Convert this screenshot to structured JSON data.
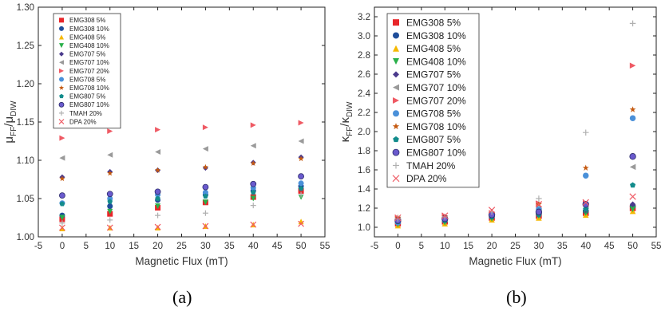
{
  "captions": [
    "(a)",
    "(b)"
  ],
  "chart_data": [
    {
      "type": "scatter",
      "panel": "(a)",
      "xlabel": "Magnetic Flux (mT)",
      "ylabel_main": "μ",
      "ylabel_sub1": "FF",
      "ylabel_mid": "/μ",
      "ylabel_sub2": "DIW",
      "xlim": [
        -5,
        55
      ],
      "ylim": [
        1.0,
        1.3
      ],
      "xticks": [
        -5,
        0,
        5,
        10,
        15,
        20,
        25,
        30,
        35,
        40,
        45,
        50,
        55
      ],
      "yticks": [
        1.0,
        1.05,
        1.1,
        1.15,
        1.2,
        1.25,
        1.3
      ],
      "ytick_labels": [
        "1.00",
        "1.05",
        "1.10",
        "1.15",
        "1.20",
        "1.25",
        "1.30"
      ],
      "legend_position": "top-left",
      "x": [
        0,
        10,
        20,
        30,
        40,
        50
      ],
      "series": [
        {
          "name": "EMG308 5%",
          "marker": "square",
          "color": "#e8262a",
          "values": [
            1.023,
            1.03,
            1.038,
            1.045,
            1.052,
            1.06
          ]
        },
        {
          "name": "EMG308 10%",
          "marker": "circle",
          "color": "#1f4e9a",
          "values": [
            1.028,
            1.04,
            1.048,
            1.055,
            1.06,
            1.066
          ]
        },
        {
          "name": "EMG408 5%",
          "marker": "triangle-up",
          "color": "#f5b800",
          "values": [
            1.011,
            1.012,
            1.012,
            1.014,
            1.016,
            1.02
          ]
        },
        {
          "name": "EMG408 10%",
          "marker": "triangle-down",
          "color": "#2ab04a",
          "values": [
            1.025,
            1.033,
            1.04,
            1.045,
            1.05,
            1.052
          ]
        },
        {
          "name": "EMG707 5%",
          "marker": "diamond",
          "color": "#4a3a8c",
          "values": [
            1.078,
            1.085,
            1.087,
            1.09,
            1.097,
            1.104
          ]
        },
        {
          "name": "EMG707 10%",
          "marker": "triangle-left",
          "color": "#9a9a9a",
          "values": [
            1.103,
            1.107,
            1.111,
            1.115,
            1.119,
            1.125
          ]
        },
        {
          "name": "EMG707 20%",
          "marker": "triangle-right",
          "color": "#ef5a64",
          "values": [
            1.129,
            1.138,
            1.14,
            1.143,
            1.146,
            1.149
          ]
        },
        {
          "name": "EMG708 5%",
          "marker": "circle",
          "color": "#4a90d9",
          "values": [
            1.044,
            1.05,
            1.055,
            1.058,
            1.064,
            1.07
          ]
        },
        {
          "name": "EMG708 10%",
          "marker": "star",
          "color": "#c55a11",
          "values": [
            1.076,
            1.083,
            1.087,
            1.091,
            1.096,
            1.102
          ]
        },
        {
          "name": "EMG807 5%",
          "marker": "pentagon",
          "color": "#138c8c",
          "values": [
            1.043,
            1.046,
            1.05,
            1.053,
            1.058,
            1.063
          ]
        },
        {
          "name": "EMG807 10%",
          "marker": "circle-ring",
          "color": "#6a5acd",
          "values": [
            1.054,
            1.056,
            1.059,
            1.065,
            1.069,
            1.079
          ]
        },
        {
          "name": "TMAH 20%",
          "marker": "plus",
          "color": "#b0b0b0",
          "values": [
            1.018,
            1.022,
            1.028,
            1.031,
            1.041,
            1.055
          ]
        },
        {
          "name": "DPA 20%",
          "marker": "x",
          "color": "#ef5a64",
          "values": [
            1.012,
            1.012,
            1.013,
            1.014,
            1.016,
            1.017
          ]
        }
      ]
    },
    {
      "type": "scatter",
      "panel": "(b)",
      "xlabel": "Magnetic Flux (mT)",
      "ylabel_main": "κ",
      "ylabel_sub1": "FF",
      "ylabel_mid": "/κ",
      "ylabel_sub2": "DIW",
      "xlim": [
        -5,
        55
      ],
      "ylim": [
        0.9,
        3.3
      ],
      "xticks": [
        -5,
        0,
        5,
        10,
        15,
        20,
        25,
        30,
        35,
        40,
        45,
        50,
        55
      ],
      "yticks": [
        1.0,
        1.2,
        1.4,
        1.6,
        1.8,
        2.0,
        2.2,
        2.4,
        2.6,
        2.8,
        3.0,
        3.2
      ],
      "ytick_labels": [
        "1.0",
        "1.2",
        "1.4",
        "1.6",
        "1.8",
        "2.0",
        "2.2",
        "2.4",
        "2.6",
        "2.8",
        "3.0",
        "3.2"
      ],
      "legend_position": "top-left",
      "x": [
        0,
        10,
        20,
        30,
        40,
        50
      ],
      "series": [
        {
          "name": "EMG308 5%",
          "marker": "square",
          "color": "#e8262a",
          "values": [
            1.04,
            1.06,
            1.1,
            1.12,
            1.15,
            1.2
          ]
        },
        {
          "name": "EMG308 10%",
          "marker": "circle",
          "color": "#1f4e9a",
          "values": [
            1.05,
            1.07,
            1.11,
            1.14,
            1.17,
            1.22
          ]
        },
        {
          "name": "EMG408 5%",
          "marker": "triangle-up",
          "color": "#f5b800",
          "values": [
            1.02,
            1.04,
            1.08,
            1.1,
            1.13,
            1.17
          ]
        },
        {
          "name": "EMG408 10%",
          "marker": "triangle-down",
          "color": "#2ab04a",
          "values": [
            1.03,
            1.05,
            1.09,
            1.12,
            1.15,
            1.19
          ]
        },
        {
          "name": "EMG707 5%",
          "marker": "diamond",
          "color": "#4a3a8c",
          "values": [
            1.06,
            1.08,
            1.12,
            1.15,
            1.18,
            1.24
          ]
        },
        {
          "name": "EMG707 10%",
          "marker": "triangle-left",
          "color": "#9a9a9a",
          "values": [
            1.08,
            1.09,
            1.13,
            1.17,
            1.22,
            1.63
          ]
        },
        {
          "name": "EMG707 20%",
          "marker": "triangle-right",
          "color": "#ef5a64",
          "values": [
            1.1,
            1.12,
            1.15,
            1.25,
            1.25,
            2.69
          ]
        },
        {
          "name": "EMG708 5%",
          "marker": "circle",
          "color": "#4a90d9",
          "values": [
            1.05,
            1.08,
            1.12,
            1.19,
            1.54,
            2.14
          ]
        },
        {
          "name": "EMG708 10%",
          "marker": "star",
          "color": "#c55a11",
          "values": [
            1.1,
            1.11,
            1.14,
            1.24,
            1.62,
            2.23
          ]
        },
        {
          "name": "EMG807 5%",
          "marker": "pentagon",
          "color": "#138c8c",
          "values": [
            1.06,
            1.07,
            1.11,
            1.13,
            1.19,
            1.44
          ]
        },
        {
          "name": "EMG807 10%",
          "marker": "circle-ring",
          "color": "#6a5acd",
          "values": [
            1.07,
            1.09,
            1.13,
            1.16,
            1.24,
            1.74
          ]
        },
        {
          "name": "TMAH 20%",
          "marker": "plus",
          "color": "#b0b0b0",
          "values": [
            1.09,
            1.11,
            1.16,
            1.3,
            1.99,
            3.13
          ]
        },
        {
          "name": "DPA 20%",
          "marker": "x",
          "color": "#ef5a64",
          "values": [
            1.1,
            1.12,
            1.18,
            1.24,
            1.26,
            1.32
          ]
        }
      ]
    }
  ]
}
